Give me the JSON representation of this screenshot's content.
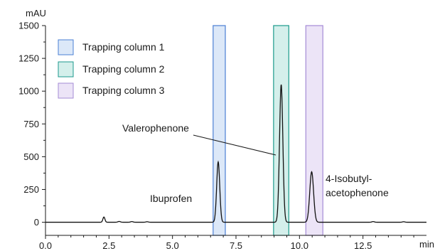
{
  "chart_data": {
    "type": "line",
    "title": "",
    "xlabel": "min",
    "ylabel": "mAU",
    "xlim": [
      0,
      15
    ],
    "ylim": [
      -100,
      1500
    ],
    "x_ticks": [
      0.0,
      2.5,
      5.0,
      7.5,
      10.0,
      12.5
    ],
    "x_tick_labels": [
      "0.0",
      "2.5",
      "5.0",
      "7.5",
      "10.0",
      "12.5"
    ],
    "y_ticks": [
      0,
      250,
      500,
      750,
      1000,
      1250,
      1500
    ],
    "y_tick_labels": [
      "0",
      "250",
      "500",
      "750",
      "1000",
      "1250",
      "1500"
    ],
    "grid": false,
    "legend_position": "top-left",
    "baseline": 0,
    "minor_peaks": [
      {
        "x": 2.3,
        "y": 40,
        "width": 0.04
      },
      {
        "x": 2.9,
        "y": 6,
        "width": 0.05
      },
      {
        "x": 3.4,
        "y": 5,
        "width": 0.05
      },
      {
        "x": 4.0,
        "y": 4,
        "width": 0.05
      },
      {
        "x": 12.9,
        "y": 5,
        "width": 0.05
      },
      {
        "x": 14.1,
        "y": 4,
        "width": 0.05
      }
    ],
    "peaks": [
      {
        "name": "Ibuprofen",
        "x": 6.8,
        "y": 460,
        "width": 0.06
      },
      {
        "name": "Valerophenone",
        "x": 9.28,
        "y": 1050,
        "width": 0.065
      },
      {
        "name": "4-Isobutyl-acetophenone",
        "x": 10.48,
        "y": 385,
        "width": 0.075
      }
    ],
    "trapping_windows": [
      {
        "name": "Trapping column 1",
        "x_start": 6.6,
        "x_end": 7.08,
        "stroke": "#4a7fd4",
        "fill": "#dce8f8"
      },
      {
        "name": "Trapping column 2",
        "x_start": 8.98,
        "x_end": 9.58,
        "stroke": "#1c9a8c",
        "fill": "#d4efeb"
      },
      {
        "name": "Trapping column 3",
        "x_start": 10.25,
        "x_end": 10.92,
        "stroke": "#a58bd6",
        "fill": "#ece4f7"
      }
    ],
    "annotations": {
      "ibuprofen": "Ibuprofen",
      "valerophenone": "Valerophenone",
      "isobutyl_line1": "4-Isobutyl-",
      "isobutyl_line2": "acetophenone"
    }
  }
}
